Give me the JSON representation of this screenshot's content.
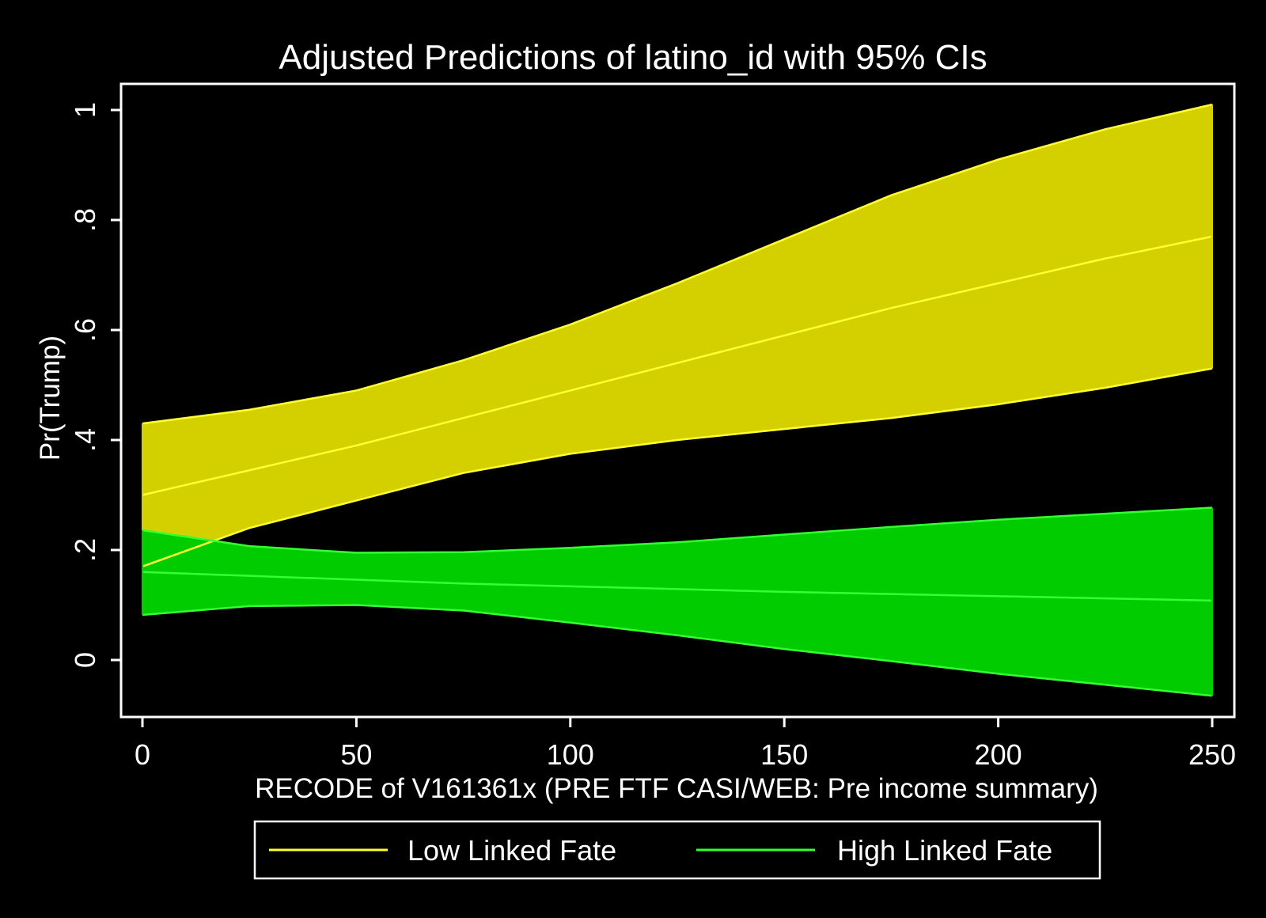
{
  "chart_data": {
    "type": "area",
    "title": "Adjusted Predictions of latino_id with 95% CIs",
    "xlabel": "RECODE of V161361x (PRE FTF CASI/WEB: Pre income summary)",
    "ylabel": "Pr(Trump)",
    "xlim": [
      0,
      250
    ],
    "ylim": [
      -0.1,
      1.05
    ],
    "xticks": [
      0,
      50,
      100,
      150,
      200,
      250
    ],
    "xtick_labels": [
      "0",
      "50",
      "100",
      "150",
      "200",
      "250"
    ],
    "yticks": [
      0,
      0.2,
      0.4,
      0.6,
      0.8,
      1.0
    ],
    "ytick_labels": [
      "0",
      ".2",
      ".4",
      ".6",
      ".8",
      "1"
    ],
    "grid": false,
    "legend_position": "bottom",
    "x": [
      0,
      25,
      50,
      75,
      100,
      125,
      150,
      175,
      200,
      225,
      250
    ],
    "series": [
      {
        "name": "Low Linked Fate",
        "color": "#ffff33",
        "fill": "#d4d000",
        "estimate": [
          0.3,
          0.345,
          0.39,
          0.44,
          0.49,
          0.54,
          0.59,
          0.64,
          0.685,
          0.73,
          0.77
        ],
        "lower": [
          0.17,
          0.24,
          0.29,
          0.34,
          0.375,
          0.4,
          0.42,
          0.44,
          0.465,
          0.495,
          0.53
        ],
        "upper": [
          0.43,
          0.455,
          0.49,
          0.545,
          0.61,
          0.685,
          0.765,
          0.845,
          0.91,
          0.965,
          1.01
        ]
      },
      {
        "name": "High Linked Fate",
        "color": "#33ff33",
        "fill": "#00cc00",
        "estimate": [
          0.16,
          0.153,
          0.146,
          0.139,
          0.134,
          0.129,
          0.124,
          0.12,
          0.116,
          0.112,
          0.108
        ],
        "lower": [
          0.082,
          0.098,
          0.1,
          0.09,
          0.068,
          0.045,
          0.02,
          -0.002,
          -0.025,
          -0.045,
          -0.065
        ],
        "upper": [
          0.236,
          0.207,
          0.195,
          0.196,
          0.204,
          0.214,
          0.228,
          0.242,
          0.255,
          0.266,
          0.277
        ]
      }
    ]
  }
}
